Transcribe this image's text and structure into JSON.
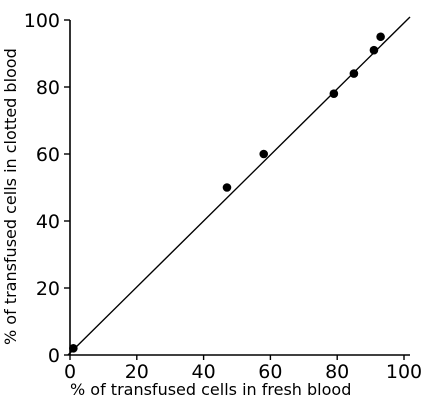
{
  "chart_data": {
    "type": "scatter",
    "title": "",
    "xlabel": "% of transfused cells in fresh blood",
    "ylabel": "% of transfused cells in clotted blood",
    "xlim": [
      0,
      100
    ],
    "ylim": [
      0,
      100
    ],
    "x_ticks": [
      "0",
      "20",
      "40",
      "60",
      "80",
      "100"
    ],
    "y_ticks": [
      "0",
      "20",
      "40",
      "60",
      "80",
      "100"
    ],
    "grid": false,
    "points": [
      {
        "x": 1,
        "y": 2
      },
      {
        "x": 47,
        "y": 50
      },
      {
        "x": 58,
        "y": 60
      },
      {
        "x": 79,
        "y": 78
      },
      {
        "x": 85,
        "y": 84
      },
      {
        "x": 91,
        "y": 91
      },
      {
        "x": 93,
        "y": 95
      }
    ],
    "line": {
      "x": [
        0,
        100
      ],
      "y": [
        0,
        100
      ]
    },
    "colors": {
      "ink": "#000000"
    }
  }
}
